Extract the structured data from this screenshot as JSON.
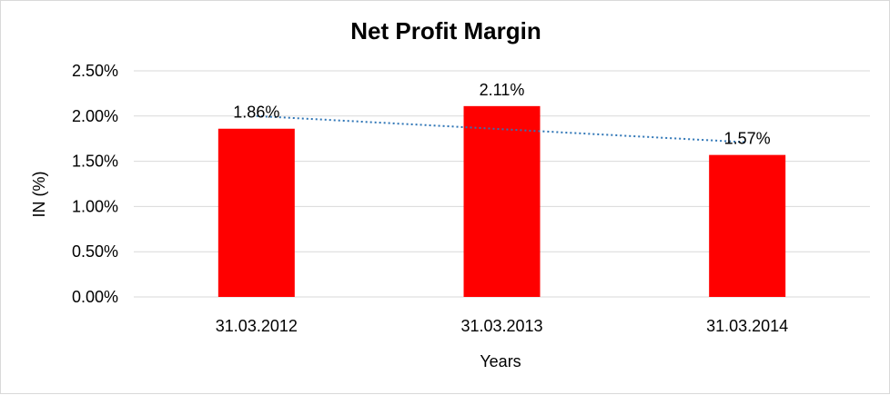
{
  "chart_data": {
    "type": "bar",
    "title": "Net Profit Margin",
    "xlabel": "Years",
    "ylabel": "IN (%)",
    "categories": [
      "31.03.2012",
      "31.03.2013",
      "31.03.2014"
    ],
    "values": [
      1.86,
      2.11,
      1.57
    ],
    "data_labels": [
      "1.86%",
      "2.11%",
      "1.57%"
    ],
    "y_ticks": [
      0,
      0.5,
      1.0,
      1.5,
      2.0,
      2.5
    ],
    "y_tick_labels": [
      "0.00%",
      "0.50%",
      "1.00%",
      "1.50%",
      "2.00%",
      "2.50%"
    ],
    "ylim": [
      0,
      2.5
    ],
    "grid": true,
    "legend": "none",
    "trendline": {
      "type": "linear",
      "start": 2.0,
      "end": 1.71
    },
    "colors": {
      "bar": "#ff0000",
      "trendline": "#2e75b6",
      "grid": "#d9d9d9"
    }
  }
}
